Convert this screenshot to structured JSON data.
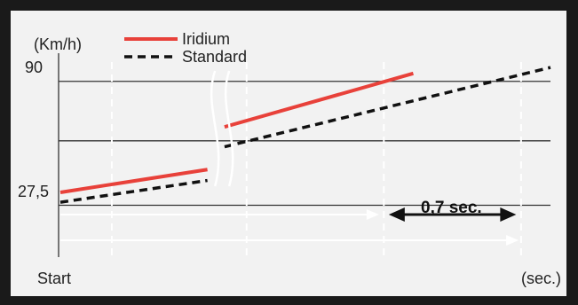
{
  "chart_data": {
    "type": "line",
    "ylabel": "(Km/h)",
    "xlabel": "(sec.)",
    "x_start_label": "Start",
    "yticks": [
      {
        "value": 27.5,
        "label": "27,5"
      },
      {
        "value": 90,
        "label": "90"
      }
    ],
    "ylim": [
      0,
      110
    ],
    "xlim": [
      0,
      10
    ],
    "break_x": 3.3,
    "series": [
      {
        "name": "Iridium",
        "style": "solid",
        "color": "#e8413a",
        "segments": [
          [
            [
              0,
              34
            ],
            [
              3.0,
              45.5
            ]
          ],
          [
            [
              3.35,
              67
            ],
            [
              7.2,
              94
            ]
          ]
        ]
      },
      {
        "name": "Standard",
        "style": "dashed",
        "color": "#111111",
        "segments": [
          [
            [
              0,
              29
            ],
            [
              3.0,
              40
            ]
          ],
          [
            [
              3.35,
              57
            ],
            [
              10,
              97
            ]
          ]
        ]
      }
    ],
    "annotation": {
      "label": "0,7 sec.",
      "from_x": 6.7,
      "to_x": 9.3
    }
  },
  "colors": {
    "background": "#f2f2f2",
    "frame": "#1a1a1a",
    "grid": "#333333",
    "arrow": "#ffffff",
    "iridium": "#e8413a",
    "standard": "#111111"
  }
}
